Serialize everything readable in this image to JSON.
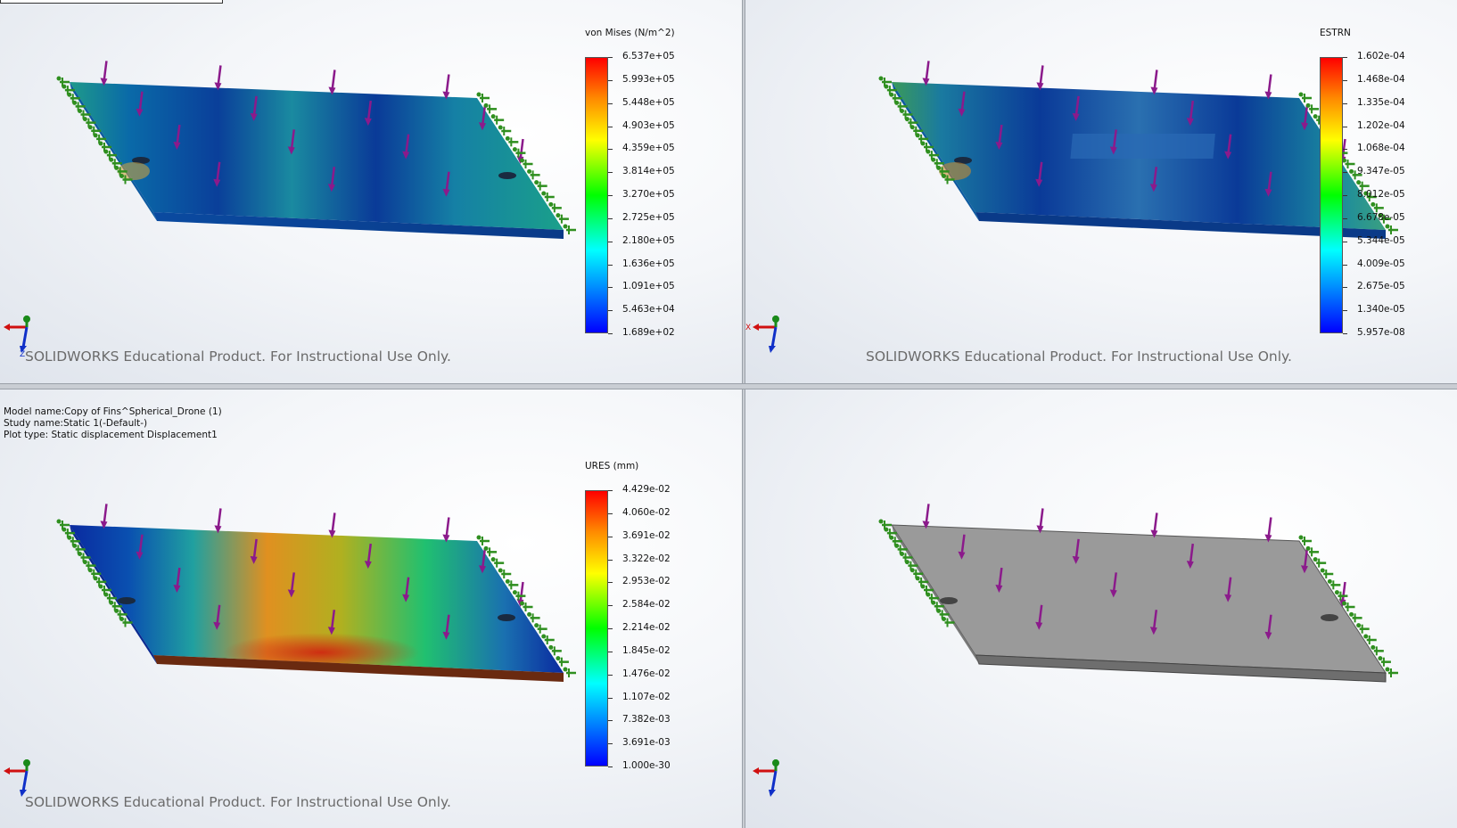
{
  "model_info": {
    "line1": "Model name:Copy of Fins^Spherical_Drone (1)",
    "line2": "Study name:Static 1(-Default-)",
    "line3": "Plot type: Static displacement Displacement1"
  },
  "watermark": "SOLIDWORKS Educational Product. For Instructional Use Only.",
  "triad": {
    "x_label": "X",
    "y_label": "Y",
    "z_label": "Z"
  },
  "legends": {
    "stress": {
      "title": "von Mises (N/m^2)",
      "labels": [
        "6.537e+05",
        "5.993e+05",
        "5.448e+05",
        "4.903e+05",
        "4.359e+05",
        "3.814e+05",
        "3.270e+05",
        "2.725e+05",
        "2.180e+05",
        "1.636e+05",
        "1.091e+05",
        "5.463e+04",
        "1.689e+02"
      ]
    },
    "strain": {
      "title": "ESTRN",
      "labels": [
        "1.602e-04",
        "1.468e-04",
        "1.335e-04",
        "1.202e-04",
        "1.068e-04",
        "9.347e-05",
        "8.012e-05",
        "6.678e-05",
        "5.344e-05",
        "4.009e-05",
        "2.675e-05",
        "1.340e-05",
        "5.957e-08"
      ]
    },
    "displacement": {
      "title": "URES (mm)",
      "labels": [
        "4.429e-02",
        "4.060e-02",
        "3.691e-02",
        "3.322e-02",
        "2.953e-02",
        "2.584e-02",
        "2.214e-02",
        "1.845e-02",
        "1.476e-02",
        "1.107e-02",
        "7.382e-03",
        "3.691e-03",
        "1.000e-30"
      ]
    }
  },
  "colors": {
    "load_arrow": "#8b1a8b",
    "fixture": "#2f8f1f",
    "plain_model": "#9a9a9a"
  }
}
